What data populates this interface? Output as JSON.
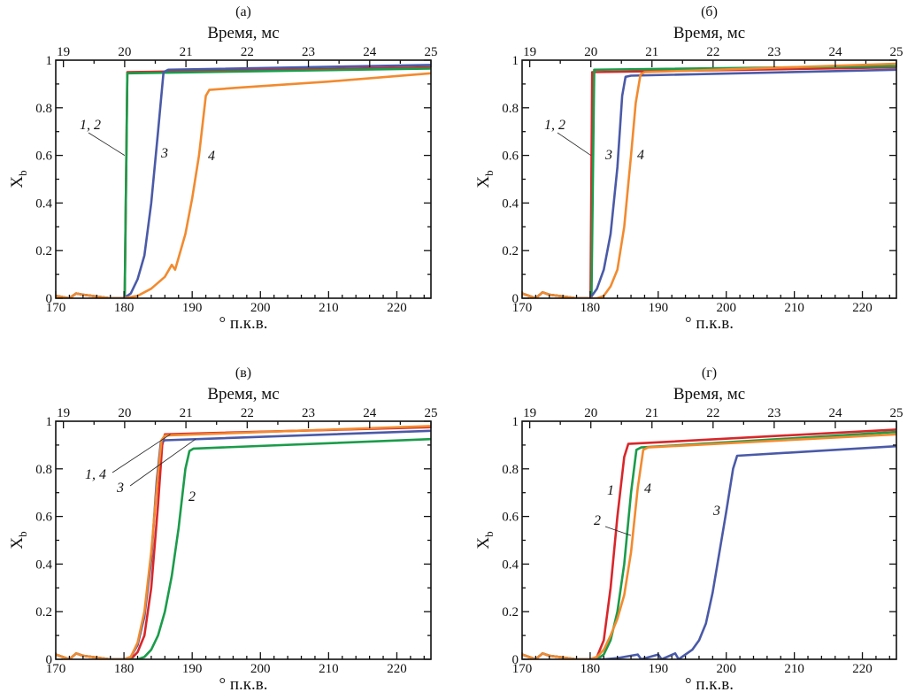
{
  "chart_data": [
    {
      "type": "line",
      "panel_label": "(а)",
      "xlabel": "° п.к.в.",
      "ylabel": "X_b",
      "x2label": "Время, мс",
      "xlim": [
        170,
        225
      ],
      "ylim": [
        0,
        1
      ],
      "x2lim": [
        18.875,
        25
      ],
      "xticks": [
        170,
        180,
        190,
        200,
        210,
        220
      ],
      "yticks": [
        "0",
        "0.2",
        "0.4",
        "0.6",
        "0.8",
        "1"
      ],
      "x2ticks": [
        19,
        20,
        21,
        22,
        23,
        24,
        25
      ],
      "series": [
        {
          "name": "1",
          "color": "#d9262a",
          "x": [
            170,
            172,
            173,
            174,
            178,
            180,
            180.1,
            180.5,
            225
          ],
          "y": [
            0.01,
            0.0,
            0.02,
            0.015,
            0.0,
            0.0,
            0.0,
            0.95,
            0.97
          ]
        },
        {
          "name": "2",
          "color": "#1a9c4a",
          "x": [
            170,
            172,
            173,
            174,
            178,
            180,
            180.1,
            180.5,
            225
          ],
          "y": [
            0.01,
            0.0,
            0.02,
            0.015,
            0.0,
            0.0,
            0.0,
            0.945,
            0.965
          ]
        },
        {
          "name": "3",
          "color": "#4a5aa8",
          "x": [
            170,
            172,
            173,
            174,
            178,
            180,
            181,
            182,
            183,
            184,
            185,
            185.8,
            186.5,
            225
          ],
          "y": [
            0.01,
            0.0,
            0.02,
            0.015,
            0.0,
            0.0,
            0.02,
            0.08,
            0.18,
            0.4,
            0.7,
            0.95,
            0.96,
            0.98
          ]
        },
        {
          "name": "4",
          "color": "#f28a2e",
          "x": [
            170,
            172,
            173,
            174,
            178,
            180,
            182,
            184,
            186,
            187,
            187.5,
            188,
            189,
            190,
            191,
            192,
            192.5,
            197,
            210,
            225
          ],
          "y": [
            0.01,
            0.0,
            0.02,
            0.015,
            0.0,
            0.0,
            0.01,
            0.04,
            0.09,
            0.14,
            0.12,
            0.17,
            0.27,
            0.42,
            0.6,
            0.85,
            0.875,
            0.885,
            0.91,
            0.945
          ]
        }
      ],
      "annotations": [
        {
          "text": "1, 2",
          "points_to_series": [
            "1",
            "2"
          ]
        },
        {
          "text": "3",
          "points_to_series": [
            "3"
          ]
        },
        {
          "text": "4",
          "points_to_series": [
            "4"
          ]
        }
      ]
    },
    {
      "type": "line",
      "panel_label": "(б)",
      "xlabel": "° п.к.в.",
      "ylabel": "X_b",
      "x2label": "Время, мс",
      "xlim": [
        170,
        225
      ],
      "ylim": [
        0,
        1
      ],
      "x2lim": [
        18.875,
        25
      ],
      "xticks": [
        170,
        180,
        190,
        200,
        210,
        220
      ],
      "yticks": [
        "0",
        "0.2",
        "0.4",
        "0.6",
        "0.8",
        "1"
      ],
      "x2ticks": [
        19,
        20,
        21,
        22,
        23,
        24,
        25
      ],
      "series": [
        {
          "name": "1",
          "color": "#d9262a",
          "x": [
            170,
            172,
            173,
            174,
            178,
            180,
            180.05,
            180.3,
            225
          ],
          "y": [
            0.02,
            0.0,
            0.025,
            0.015,
            0.0,
            0.0,
            0.0,
            0.95,
            0.97
          ]
        },
        {
          "name": "2",
          "color": "#1a9c4a",
          "x": [
            170,
            172,
            173,
            174,
            178,
            180,
            180.2,
            180.6,
            225
          ],
          "y": [
            0.02,
            0.0,
            0.025,
            0.015,
            0.0,
            0.0,
            0.0,
            0.96,
            0.975
          ]
        },
        {
          "name": "3",
          "color": "#4a5aa8",
          "x": [
            170,
            172,
            173,
            174,
            178,
            180,
            181,
            182,
            183,
            184,
            184.7,
            185.2,
            186,
            225
          ],
          "y": [
            0.02,
            0.0,
            0.025,
            0.015,
            0.0,
            0.0,
            0.04,
            0.12,
            0.27,
            0.55,
            0.85,
            0.93,
            0.935,
            0.96
          ]
        },
        {
          "name": "4",
          "color": "#f28a2e",
          "x": [
            170,
            172,
            173,
            174,
            178,
            180,
            181,
            182,
            183,
            184,
            185,
            186,
            186.7,
            187.4,
            188,
            225
          ],
          "y": [
            0.02,
            0.0,
            0.025,
            0.015,
            0.0,
            0.0,
            0.0,
            0.01,
            0.05,
            0.12,
            0.3,
            0.6,
            0.82,
            0.94,
            0.95,
            0.985
          ]
        }
      ],
      "annotations": [
        {
          "text": "1, 2",
          "points_to_series": [
            "1",
            "2"
          ]
        },
        {
          "text": "3",
          "points_to_series": [
            "3"
          ]
        },
        {
          "text": "4",
          "points_to_series": [
            "4"
          ]
        }
      ]
    },
    {
      "type": "line",
      "panel_label": "(в)",
      "xlabel": "° п.к.в.",
      "ylabel": "X_b",
      "x2label": "Время, мс",
      "xlim": [
        170,
        225
      ],
      "ylim": [
        0,
        1
      ],
      "x2lim": [
        18.875,
        25
      ],
      "xticks": [
        170,
        180,
        190,
        200,
        210,
        220
      ],
      "yticks": [
        "0",
        "0.2",
        "0.4",
        "0.6",
        "0.8",
        "1"
      ],
      "x2ticks": [
        19,
        20,
        21,
        22,
        23,
        24,
        25
      ],
      "series": [
        {
          "name": "1",
          "color": "#d9262a",
          "x": [
            170,
            172,
            173,
            174,
            178,
            180,
            181,
            182,
            183,
            184,
            185,
            185.6,
            186,
            225
          ],
          "y": [
            0.02,
            0.0,
            0.025,
            0.015,
            0.0,
            0.0,
            0.0,
            0.03,
            0.1,
            0.3,
            0.65,
            0.9,
            0.945,
            0.975
          ]
        },
        {
          "name": "2",
          "color": "#1a9c4a",
          "x": [
            170,
            172,
            173,
            174,
            178,
            180,
            182,
            183,
            184,
            185,
            186,
            187,
            188,
            189,
            189.6,
            190.2,
            225
          ],
          "y": [
            0.02,
            0.0,
            0.025,
            0.015,
            0.0,
            0.0,
            0.0,
            0.01,
            0.04,
            0.1,
            0.2,
            0.35,
            0.55,
            0.8,
            0.875,
            0.885,
            0.925
          ]
        },
        {
          "name": "3",
          "color": "#4a5aa8",
          "x": [
            170,
            172,
            173,
            174,
            178,
            180,
            181,
            182,
            183,
            184,
            184.8,
            185.4,
            186,
            225
          ],
          "y": [
            0.02,
            0.0,
            0.025,
            0.015,
            0.0,
            0.0,
            0.01,
            0.06,
            0.18,
            0.42,
            0.75,
            0.91,
            0.92,
            0.96
          ]
        },
        {
          "name": "4",
          "color": "#f28a2e",
          "x": [
            170,
            172,
            173,
            174,
            178,
            180,
            181,
            182,
            183,
            184,
            185,
            185.5,
            186,
            225
          ],
          "y": [
            0.02,
            0.0,
            0.025,
            0.015,
            0.0,
            0.0,
            0.01,
            0.07,
            0.2,
            0.45,
            0.78,
            0.92,
            0.94,
            0.98
          ]
        }
      ],
      "annotations": [
        {
          "text": "1, 4",
          "points_to_series": [
            "1",
            "4"
          ]
        },
        {
          "text": "3",
          "points_to_series": [
            "3"
          ]
        },
        {
          "text": "2",
          "points_to_series": [
            "2"
          ]
        }
      ]
    },
    {
      "type": "line",
      "panel_label": "(г)",
      "xlabel": "° п.к.в.",
      "ylabel": "X_b",
      "x2label": "Время, мс",
      "xlim": [
        170,
        225
      ],
      "ylim": [
        0,
        1
      ],
      "x2lim": [
        18.875,
        25
      ],
      "xticks": [
        170,
        180,
        190,
        200,
        210,
        220
      ],
      "yticks": [
        "0",
        "0.2",
        "0.4",
        "0.6",
        "0.8",
        "1"
      ],
      "x2ticks": [
        19,
        20,
        21,
        22,
        23,
        24,
        25
      ],
      "series": [
        {
          "name": "1",
          "color": "#d9262a",
          "x": [
            170,
            172,
            173,
            174,
            178,
            180,
            181,
            182,
            183,
            184,
            185,
            185.6,
            225
          ],
          "y": [
            0.02,
            0.0,
            0.025,
            0.015,
            0.0,
            0.0,
            0.01,
            0.08,
            0.3,
            0.6,
            0.85,
            0.905,
            0.965
          ]
        },
        {
          "name": "2",
          "color": "#1a9c4a",
          "x": [
            170,
            172,
            173,
            174,
            178,
            180,
            181,
            182,
            183,
            184,
            185,
            186,
            186.8,
            187.5,
            225
          ],
          "y": [
            0.02,
            0.0,
            0.025,
            0.015,
            0.0,
            0.0,
            0.0,
            0.02,
            0.08,
            0.2,
            0.4,
            0.7,
            0.88,
            0.89,
            0.955
          ]
        },
        {
          "name": "3",
          "color": "#4a5aa8",
          "x": [
            170,
            172,
            173,
            174,
            178,
            180,
            182,
            184,
            187,
            187.5,
            190,
            190.5,
            192.5,
            193,
            195,
            196,
            197,
            198,
            199,
            200,
            201,
            201.6,
            225
          ],
          "y": [
            0.02,
            0.0,
            0.025,
            0.015,
            0.0,
            0.0,
            0.0,
            0.005,
            0.02,
            0.0,
            0.02,
            0.0,
            0.025,
            0.0,
            0.04,
            0.08,
            0.15,
            0.28,
            0.45,
            0.62,
            0.8,
            0.855,
            0.895
          ]
        },
        {
          "name": "4",
          "color": "#f28a2e",
          "x": [
            170,
            172,
            173,
            174,
            178,
            180,
            181,
            182,
            183,
            184,
            185,
            186,
            187,
            187.8,
            188.5,
            225
          ],
          "y": [
            0.02,
            0.0,
            0.025,
            0.015,
            0.0,
            0.0,
            0.01,
            0.04,
            0.1,
            0.17,
            0.27,
            0.45,
            0.72,
            0.88,
            0.89,
            0.945
          ]
        }
      ],
      "annotations": [
        {
          "text": "1",
          "points_to_series": [
            "1"
          ]
        },
        {
          "text": "2",
          "points_to_series": [
            "2"
          ]
        },
        {
          "text": "4",
          "points_to_series": [
            "4"
          ]
        },
        {
          "text": "3",
          "points_to_series": [
            "3"
          ]
        }
      ]
    }
  ]
}
